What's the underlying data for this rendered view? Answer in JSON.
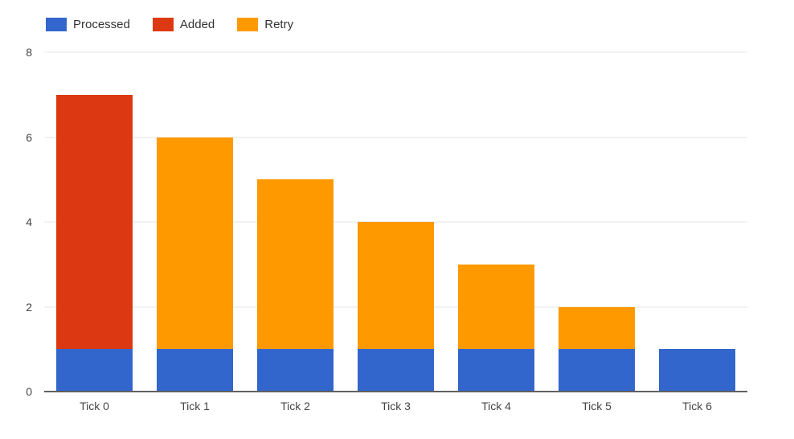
{
  "chart_data": {
    "type": "bar",
    "stacked": true,
    "orientation": "vertical",
    "title": "",
    "xlabel": "",
    "ylabel": "",
    "categories": [
      "Tick 0",
      "Tick 1",
      "Tick 2",
      "Tick 3",
      "Tick 4",
      "Tick 5",
      "Tick 6"
    ],
    "series": [
      {
        "name": "Processed",
        "color": "#3366cc",
        "values": [
          1,
          1,
          1,
          1,
          1,
          1,
          1
        ]
      },
      {
        "name": "Added",
        "color": "#dc3912",
        "values": [
          6,
          0,
          0,
          0,
          0,
          0,
          0
        ]
      },
      {
        "name": "Retry",
        "color": "#ff9900",
        "values": [
          0,
          5,
          4,
          3,
          2,
          1,
          0
        ]
      }
    ],
    "totals": [
      7,
      6,
      5,
      4,
      3,
      2,
      1
    ],
    "ylim": [
      0,
      8
    ],
    "yticks": [
      0,
      2,
      4,
      6,
      8
    ],
    "grid": true,
    "legend_position": "top"
  }
}
